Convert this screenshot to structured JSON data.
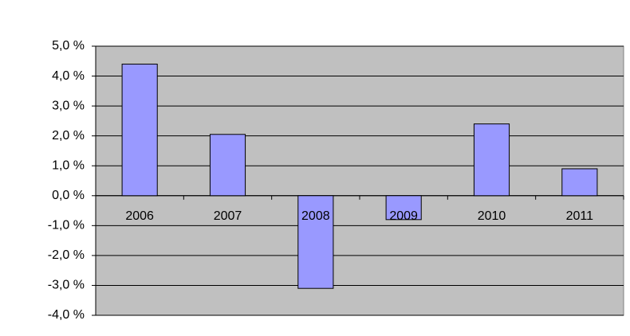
{
  "chart_data": {
    "type": "bar",
    "categories": [
      "2006",
      "2007",
      "2008",
      "2009",
      "2010",
      "2011"
    ],
    "values": [
      4.4,
      2.05,
      -3.1,
      -0.8,
      2.4,
      0.9
    ],
    "color": "#9999ff",
    "ylim": [
      -4,
      5
    ],
    "yticks": [
      {
        "value": 5,
        "label": "5,0 %"
      },
      {
        "value": 4,
        "label": "4,0 %"
      },
      {
        "value": 3,
        "label": "3,0 %"
      },
      {
        "value": 2,
        "label": "2,0 %"
      },
      {
        "value": 1,
        "label": "1,0 %"
      },
      {
        "value": 0,
        "label": "0,0 %"
      },
      {
        "value": -1,
        "label": "-1,0 %"
      },
      {
        "value": -2,
        "label": "-2,0 %"
      },
      {
        "value": -3,
        "label": "-3,0 %"
      },
      {
        "value": -4,
        "label": "-4,0 %"
      }
    ],
    "grid": true
  }
}
